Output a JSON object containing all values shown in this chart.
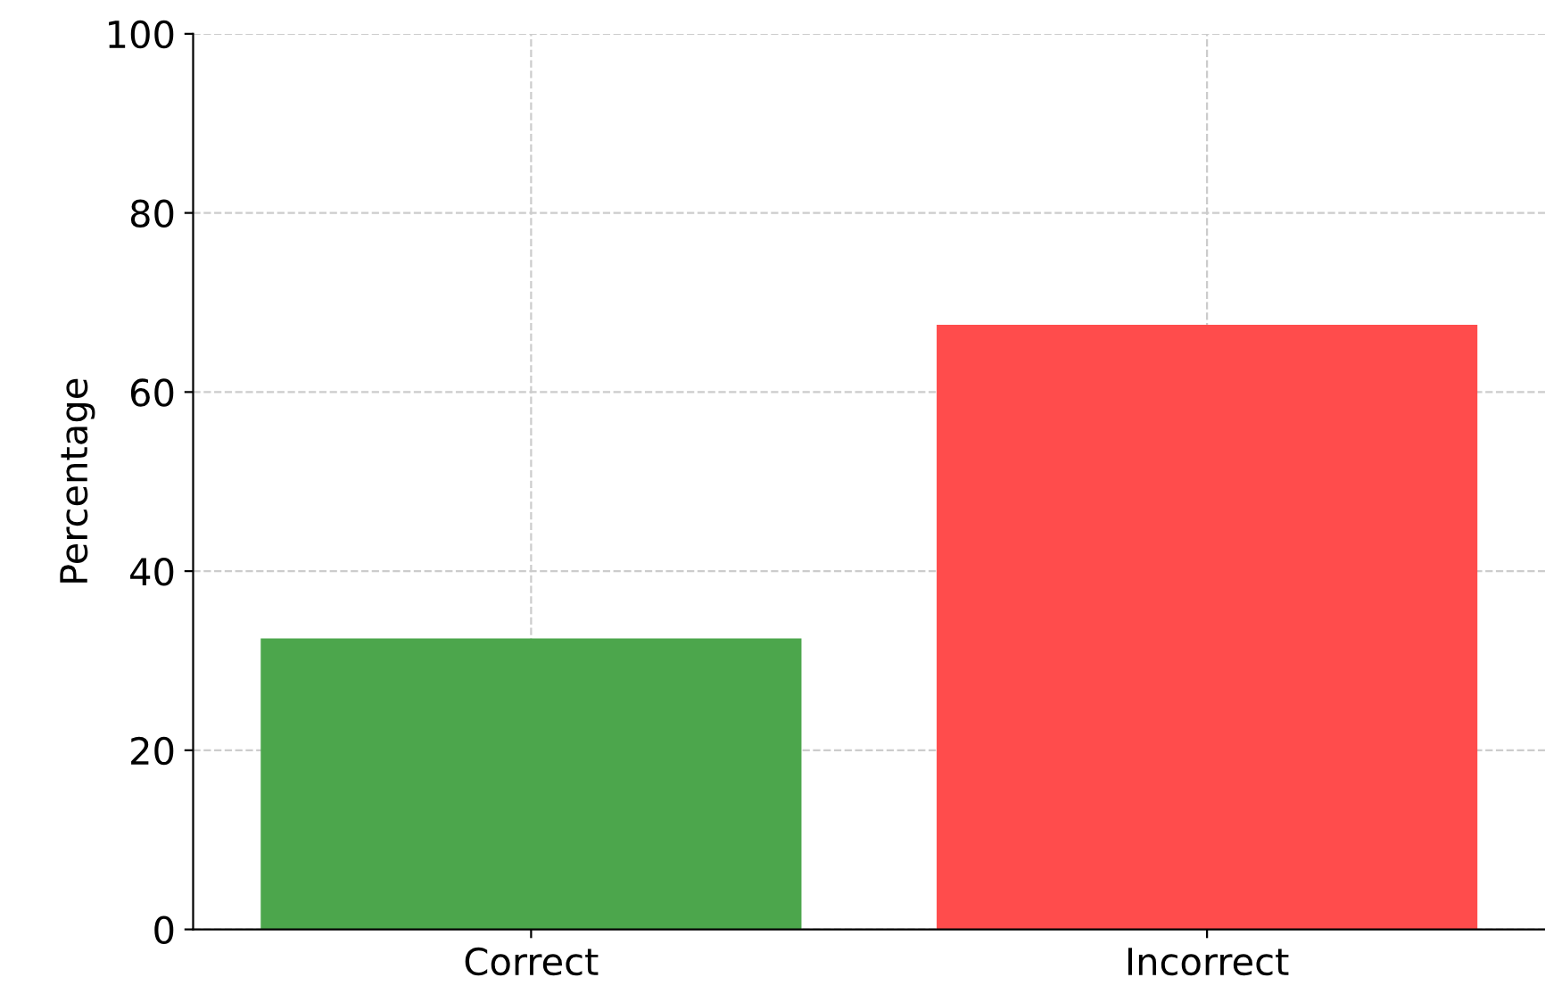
{
  "chart_data": {
    "type": "bar",
    "ylabel": "Percentage",
    "categories": [
      "Correct",
      "Incorrect"
    ],
    "values": [
      32.5,
      67.5
    ],
    "colors": [
      "#4ca64c",
      "#ff4c4c"
    ],
    "ylim": [
      0,
      100
    ],
    "yticks": [
      0,
      20,
      40,
      60,
      80,
      100
    ],
    "grid": true
  }
}
